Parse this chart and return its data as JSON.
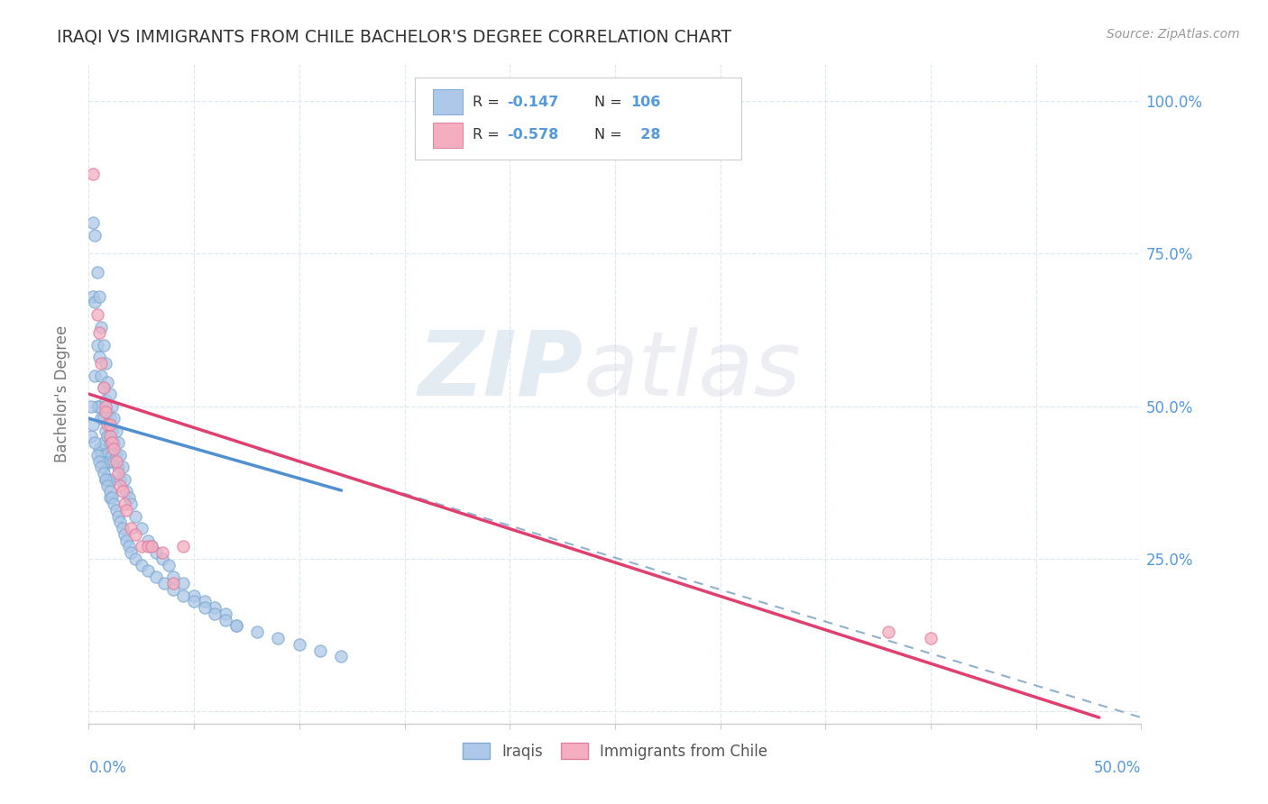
{
  "title": "IRAQI VS IMMIGRANTS FROM CHILE BACHELOR'S DEGREE CORRELATION CHART",
  "source": "Source: ZipAtlas.com",
  "ylabel": "Bachelor's Degree",
  "y_ticks": [
    0.0,
    0.25,
    0.5,
    0.75,
    1.0
  ],
  "y_tick_labels": [
    "",
    "25.0%",
    "50.0%",
    "75.0%",
    "100.0%"
  ],
  "x_range": [
    0.0,
    0.5
  ],
  "y_range": [
    -0.02,
    1.06
  ],
  "iraqi_color": "#adc8e8",
  "chile_color": "#f5aec0",
  "iraqi_edge": "#80aad0",
  "chile_edge": "#e080a0",
  "blue_line_color": "#5090d0",
  "pink_line_color": "#e04070",
  "dashed_line_color": "#90b0cc",
  "background_color": "#ffffff",
  "grid_color": "#dde8f0",
  "legend_box_color": "#ffffff",
  "legend_edge_color": "#cccccc",
  "tick_label_color": "#5599dd",
  "title_color": "#333333",
  "source_color": "#999999",
  "ylabel_color": "#777777",
  "iraqi_x": [
    0.001,
    0.002,
    0.002,
    0.003,
    0.003,
    0.003,
    0.004,
    0.004,
    0.004,
    0.005,
    0.005,
    0.005,
    0.005,
    0.006,
    0.006,
    0.006,
    0.006,
    0.007,
    0.007,
    0.007,
    0.007,
    0.007,
    0.008,
    0.008,
    0.008,
    0.008,
    0.008,
    0.009,
    0.009,
    0.009,
    0.009,
    0.009,
    0.01,
    0.01,
    0.01,
    0.01,
    0.01,
    0.01,
    0.011,
    0.011,
    0.011,
    0.012,
    0.012,
    0.012,
    0.013,
    0.013,
    0.014,
    0.014,
    0.015,
    0.015,
    0.016,
    0.017,
    0.018,
    0.019,
    0.02,
    0.022,
    0.025,
    0.028,
    0.03,
    0.032,
    0.035,
    0.038,
    0.04,
    0.045,
    0.05,
    0.055,
    0.06,
    0.065,
    0.07,
    0.001,
    0.002,
    0.003,
    0.004,
    0.005,
    0.006,
    0.007,
    0.008,
    0.009,
    0.01,
    0.011,
    0.012,
    0.013,
    0.014,
    0.015,
    0.016,
    0.017,
    0.018,
    0.019,
    0.02,
    0.022,
    0.025,
    0.028,
    0.032,
    0.036,
    0.04,
    0.045,
    0.05,
    0.055,
    0.06,
    0.065,
    0.07,
    0.08,
    0.09,
    0.1,
    0.11,
    0.12
  ],
  "iraqi_y": [
    0.45,
    0.8,
    0.68,
    0.78,
    0.67,
    0.55,
    0.72,
    0.6,
    0.5,
    0.68,
    0.58,
    0.5,
    0.43,
    0.63,
    0.55,
    0.48,
    0.42,
    0.6,
    0.53,
    0.48,
    0.44,
    0.4,
    0.57,
    0.51,
    0.46,
    0.42,
    0.38,
    0.54,
    0.49,
    0.45,
    0.41,
    0.38,
    0.52,
    0.48,
    0.44,
    0.41,
    0.38,
    0.35,
    0.5,
    0.46,
    0.42,
    0.48,
    0.44,
    0.41,
    0.46,
    0.42,
    0.44,
    0.4,
    0.42,
    0.38,
    0.4,
    0.38,
    0.36,
    0.35,
    0.34,
    0.32,
    0.3,
    0.28,
    0.27,
    0.26,
    0.25,
    0.24,
    0.22,
    0.21,
    0.19,
    0.18,
    0.17,
    0.16,
    0.14,
    0.5,
    0.47,
    0.44,
    0.42,
    0.41,
    0.4,
    0.39,
    0.38,
    0.37,
    0.36,
    0.35,
    0.34,
    0.33,
    0.32,
    0.31,
    0.3,
    0.29,
    0.28,
    0.27,
    0.26,
    0.25,
    0.24,
    0.23,
    0.22,
    0.21,
    0.2,
    0.19,
    0.18,
    0.17,
    0.16,
    0.15,
    0.14,
    0.13,
    0.12,
    0.11,
    0.1,
    0.09
  ],
  "chile_x": [
    0.002,
    0.004,
    0.005,
    0.006,
    0.007,
    0.008,
    0.008,
    0.009,
    0.01,
    0.01,
    0.011,
    0.012,
    0.013,
    0.014,
    0.015,
    0.016,
    0.017,
    0.018,
    0.02,
    0.022,
    0.025,
    0.028,
    0.03,
    0.035,
    0.04,
    0.045,
    0.38,
    0.4
  ],
  "chile_y": [
    0.88,
    0.65,
    0.62,
    0.57,
    0.53,
    0.5,
    0.49,
    0.47,
    0.47,
    0.45,
    0.44,
    0.43,
    0.41,
    0.39,
    0.37,
    0.36,
    0.34,
    0.33,
    0.3,
    0.29,
    0.27,
    0.27,
    0.27,
    0.26,
    0.21,
    0.27,
    0.13,
    0.12
  ],
  "blue_line_x": [
    0.0,
    0.12
  ],
  "blue_line_y": [
    0.48,
    0.362
  ],
  "pink_line_x": [
    0.0,
    0.48
  ],
  "pink_line_y": [
    0.52,
    -0.01
  ],
  "dashed_line_x": [
    0.08,
    0.5
  ],
  "dashed_line_y": [
    0.43,
    -0.01
  ]
}
